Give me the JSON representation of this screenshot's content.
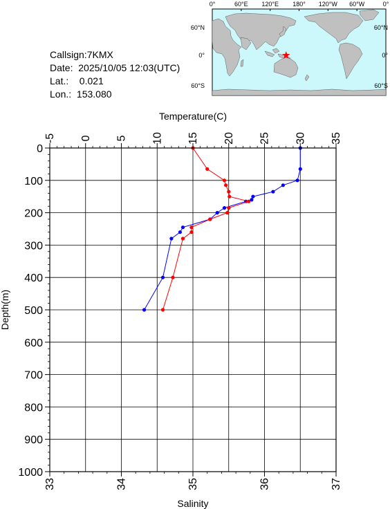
{
  "info": {
    "callsign": "Callsign:7KMX",
    "date": "Date:  2025/10/05 12:03(UTC)",
    "lat": "Lat.:    0.021",
    "lon": "Lon.:  153.080"
  },
  "map": {
    "top_ticks": [
      "0°",
      "60°E",
      "120°E",
      "180°",
      "120°W",
      "60°W",
      "0°"
    ],
    "lat_ticks": [
      "60°N",
      "0°",
      "60°S"
    ],
    "ocean_color": "#ccf8fc",
    "land_color": "#c0c0c0",
    "marker_color": "#ff0000",
    "marker_lon": 153.08,
    "marker_lat": 0.021
  },
  "chart_data": {
    "type": "line",
    "xlabel_top": "Temperature(C)",
    "xlabel_bottom": "Salinity",
    "ylabel": "Depth(m)",
    "temperature_range": [
      -5,
      35
    ],
    "salinity_range": [
      33,
      37
    ],
    "depth_range": [
      0,
      1000
    ],
    "temperature_ticks": [
      "-5",
      "0",
      "5",
      "10",
      "15",
      "20",
      "25",
      "30",
      "35"
    ],
    "salinity_ticks": [
      "33",
      "34",
      "35",
      "36",
      "37"
    ],
    "depth_ticks": [
      "0",
      "100",
      "200",
      "300",
      "400",
      "500",
      "600",
      "700",
      "800",
      "900",
      "1000"
    ],
    "grid": true,
    "series": [
      {
        "quantity": "temperature",
        "color": "#0000ff",
        "depth": [
          0,
          65,
          100,
          115,
          135,
          150,
          160,
          165,
          185,
          200,
          220,
          245,
          260,
          280,
          400,
          500
        ],
        "values": [
          30.0,
          30.0,
          29.6,
          27.6,
          26.2,
          23.4,
          23.2,
          22.4,
          19.4,
          18.4,
          17.4,
          13.6,
          13.2,
          12.0,
          10.8,
          8.2
        ]
      },
      {
        "quantity": "salinity",
        "color": "#ff0000",
        "depth": [
          0,
          65,
          100,
          115,
          135,
          150,
          165,
          185,
          200,
          220,
          245,
          260,
          280,
          400,
          500
        ],
        "values": [
          35.0,
          35.2,
          35.44,
          35.46,
          35.5,
          35.51,
          35.78,
          35.5,
          35.48,
          35.24,
          34.98,
          34.98,
          34.86,
          34.72,
          34.58
        ]
      }
    ]
  }
}
